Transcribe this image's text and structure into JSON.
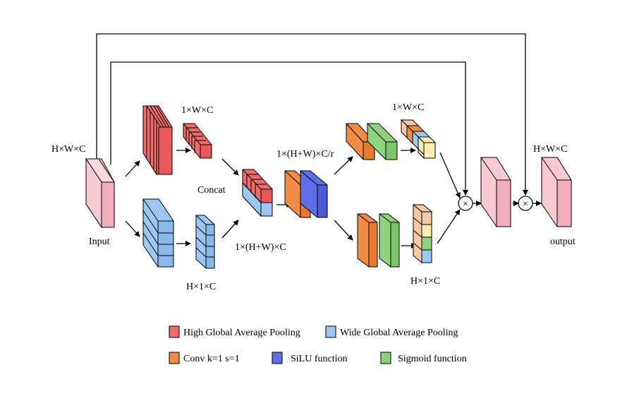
{
  "labels": {
    "input_dims": "H×W×C",
    "input": "Input",
    "high_pool_dims": "1×W×C",
    "wide_pool_dims": "H×1×C",
    "concat": "Concat",
    "concat_dims": "1×(H+W)×C",
    "reduced_dims": "1×(H+W)×C/r",
    "top_out_dims": "1×W×C",
    "bottom_out_dims": "H×1×C",
    "output_dims": "H×W×C",
    "output": "output",
    "multiply_symbol": "×"
  },
  "legend": {
    "items": [
      {
        "label": "High Global Average Pooling",
        "color": "#f06b6b"
      },
      {
        "label": "Wide Global Average Pooling",
        "color": "#9cc7f2"
      },
      {
        "label": "Conv k=1 s=1",
        "color": "#f08c45"
      },
      {
        "label": "SiLU function",
        "color": "#5d6ee6"
      },
      {
        "label": "Sigmoid function",
        "color": "#8fd27c"
      }
    ]
  },
  "colors": {
    "input_pink": "#f7c9d3",
    "high_pool_red": "#f06b6b",
    "wide_pool_blue": "#9cc7f2",
    "conv_orange": "#f08c45",
    "silu_blue": "#5d6ee6",
    "sigmoid_green": "#8fd27c",
    "cream": "#fbeeb0",
    "peach": "#f5c9a4"
  }
}
